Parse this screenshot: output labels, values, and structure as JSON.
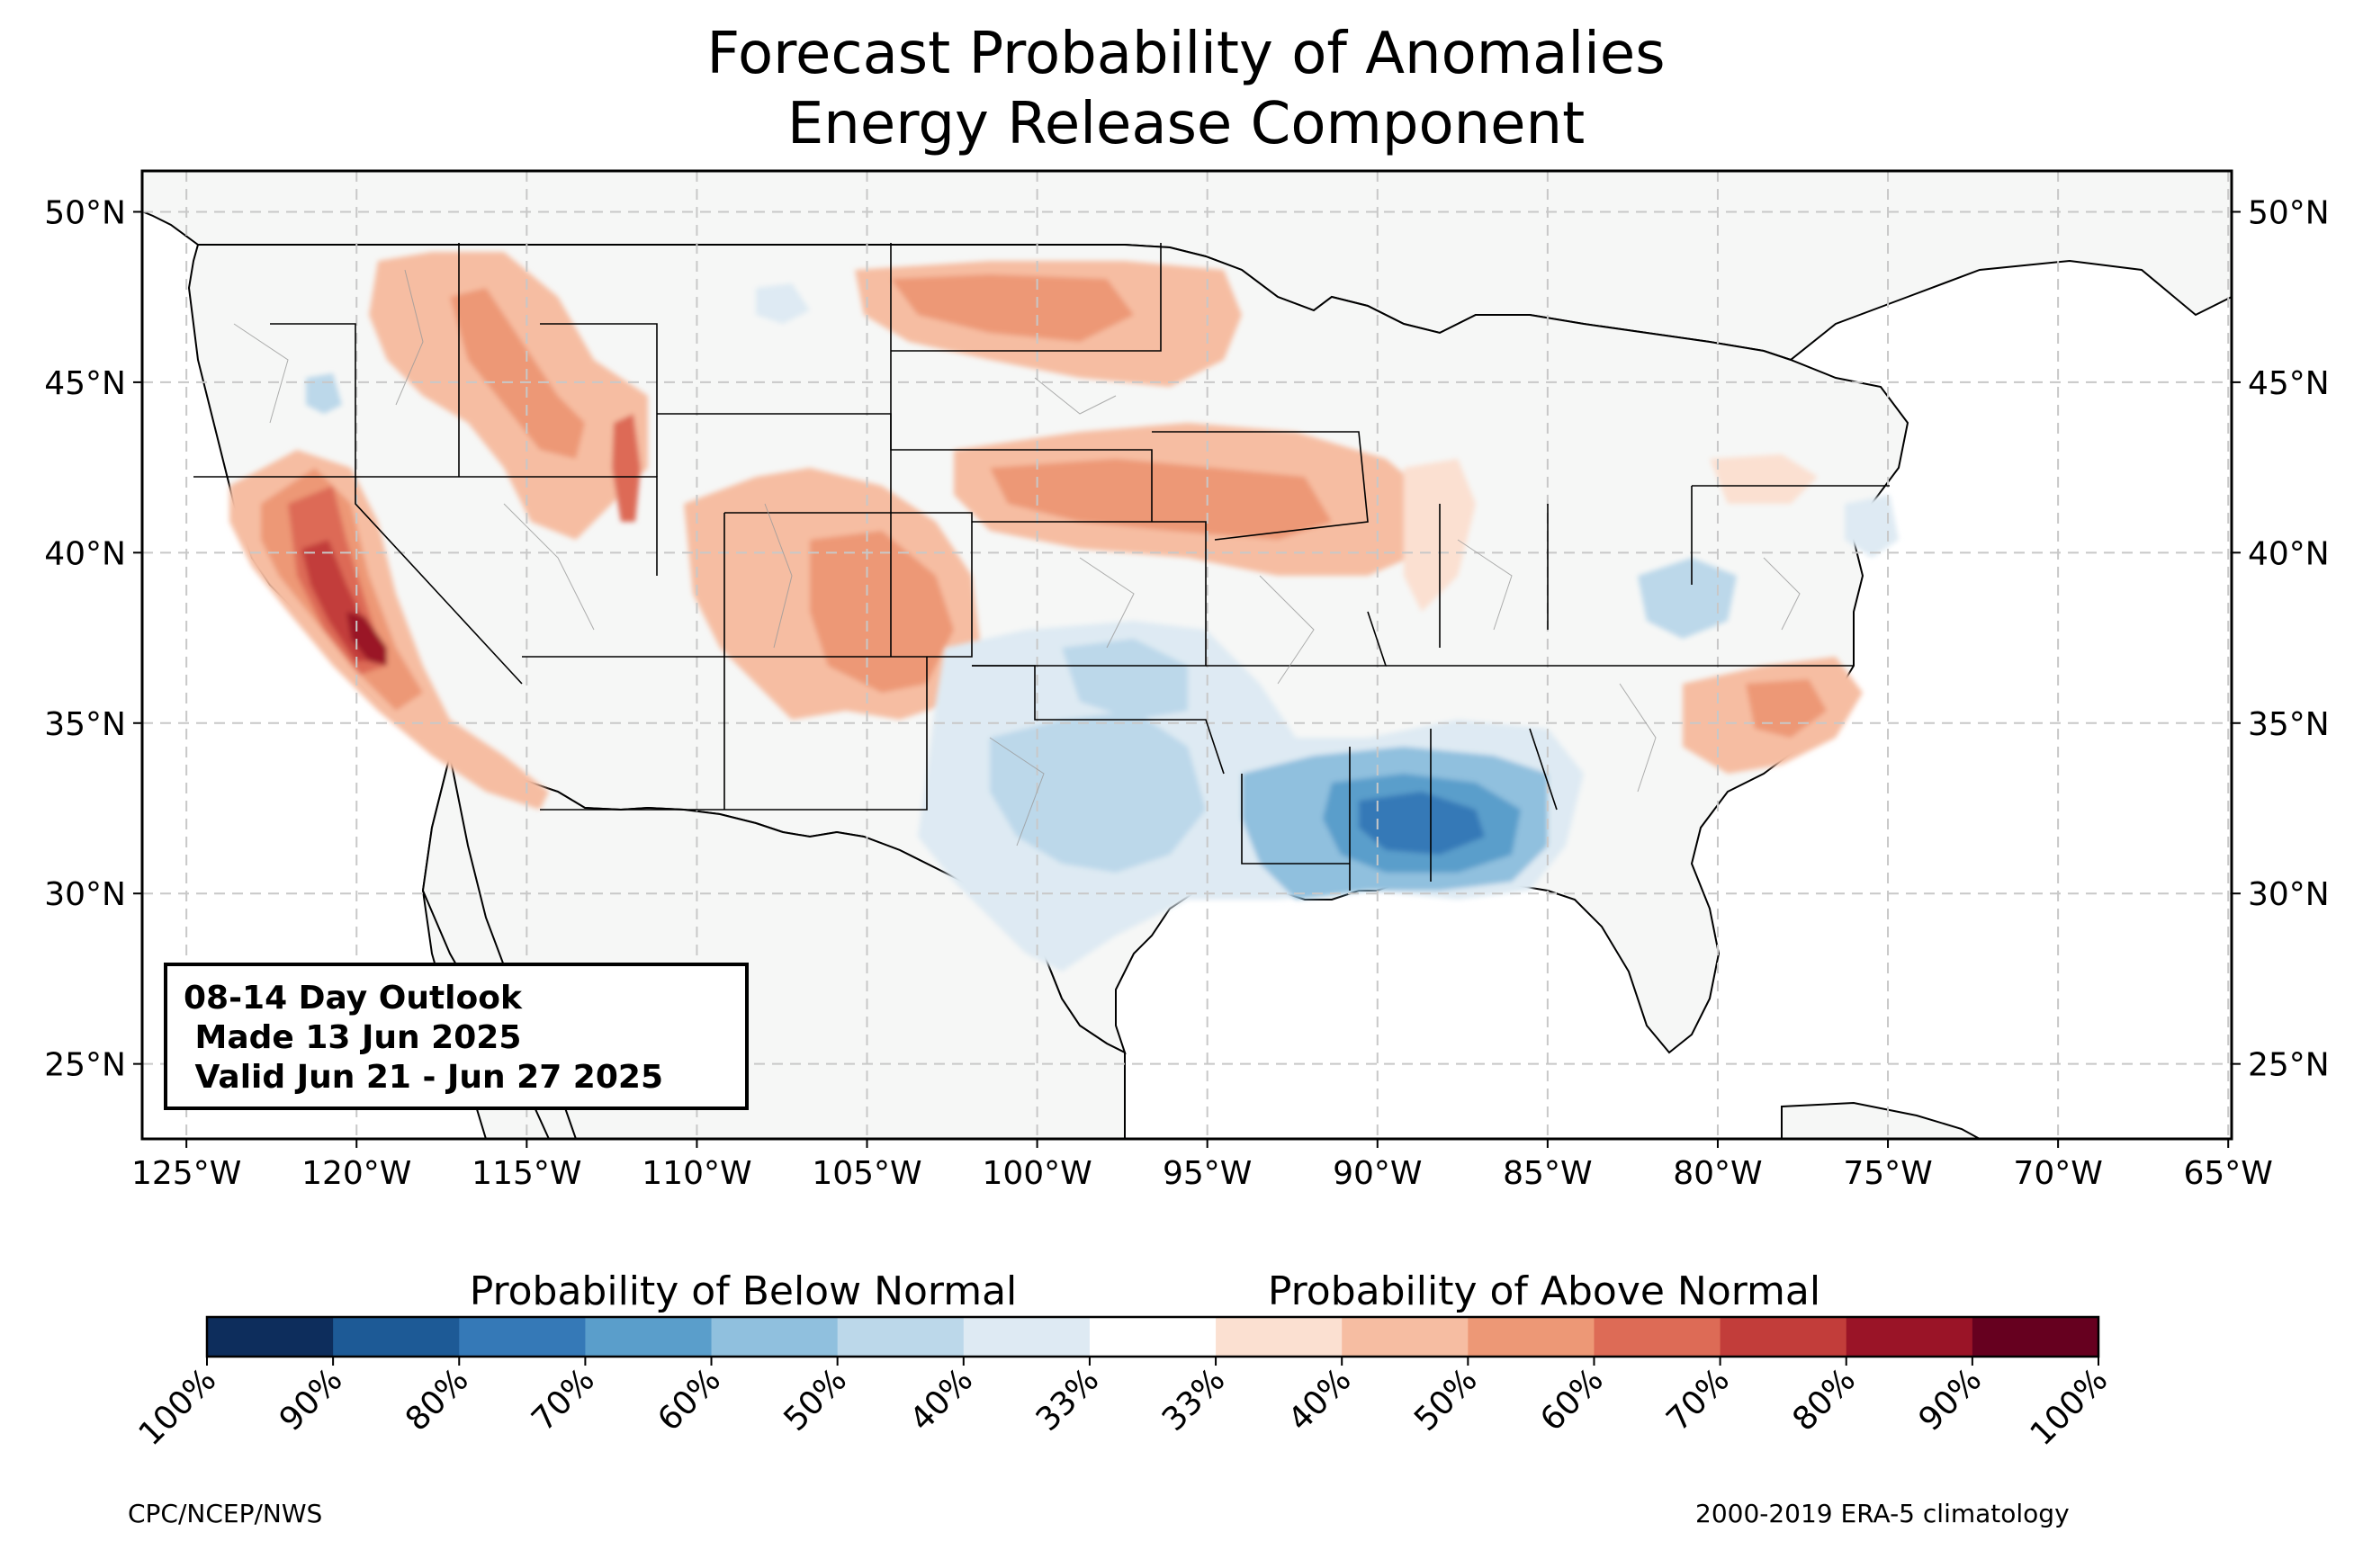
{
  "title": "Forecast Probability of Anomalies",
  "subtitle": "Energy Release Component",
  "outlook": {
    "line1": "08-14 Day Outlook",
    "line2": " Made 13 Jun 2025",
    "line3": " Valid Jun 21 - Jun 27 2025"
  },
  "axes": {
    "lon_labels": [
      "125°W",
      "120°W",
      "115°W",
      "110°W",
      "105°W",
      "100°W",
      "95°W",
      "90°W",
      "85°W",
      "80°W",
      "75°W",
      "70°W",
      "65°W"
    ],
    "lat_labels": [
      "50°N",
      "45°N",
      "40°N",
      "35°N",
      "30°N",
      "25°N"
    ],
    "lon_range": [
      -126.3,
      -64.9
    ],
    "lat_range": [
      22.8,
      51.2
    ]
  },
  "colorbar": {
    "below_label": "Probability of Below Normal",
    "above_label": "Probability of Above Normal",
    "tick_labels": [
      "100%",
      "90%",
      "80%",
      "70%",
      "60%",
      "50%",
      "40%",
      "33%",
      "33%",
      "40%",
      "50%",
      "60%",
      "70%",
      "80%",
      "90%",
      "100%"
    ],
    "colors": [
      "#0d2d5c",
      "#1d5a96",
      "#3579b7",
      "#5a9ecb",
      "#90c0de",
      "#bcd8ea",
      "#deeaf3",
      "#ffffff",
      "#fbe0d1",
      "#f6bda2",
      "#ed9876",
      "#dd6b56",
      "#c23d3a",
      "#9a1427",
      "#66001f"
    ]
  },
  "footer": {
    "left": "CPC/NCEP/NWS",
    "right": "2000-2019 ERA-5 climatology"
  },
  "colors": {
    "land": "#f6f7f6",
    "ocean": "#ffffff",
    "border": "#000000",
    "county": "#9a9a9a",
    "grid": "#c8c8c8"
  }
}
